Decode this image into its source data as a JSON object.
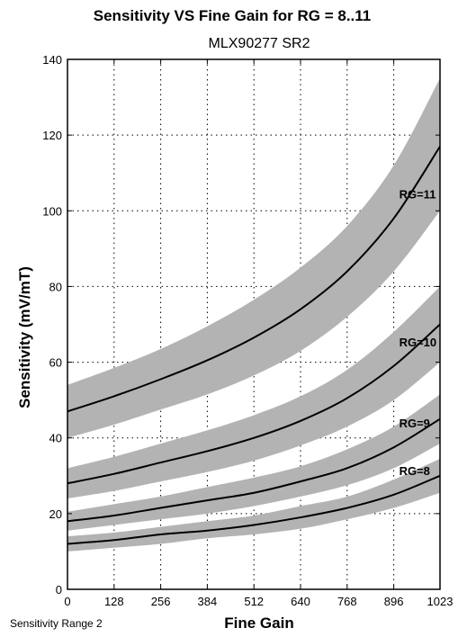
{
  "chart_data": {
    "type": "line",
    "title": "Sensitivity VS Fine Gain for RG = 8..11",
    "subtitle": "MLX90277 SR2",
    "xlabel": "Fine Gain",
    "ylabel": "Sensitivity (mV/mT)",
    "footnote": "Sensitivity Range 2",
    "xlim": [
      0,
      1023
    ],
    "ylim": [
      0,
      140
    ],
    "xticks": [
      0,
      128,
      256,
      384,
      512,
      640,
      768,
      896,
      1023
    ],
    "yticks": [
      0,
      20,
      40,
      60,
      80,
      100,
      120,
      140
    ],
    "grid": true,
    "band_color": "#b3b3b3",
    "line_color": "#000000",
    "x": [
      0,
      128,
      256,
      384,
      512,
      640,
      768,
      896,
      1023
    ],
    "series": [
      {
        "name": "RG=11",
        "values": [
          47,
          51,
          55.5,
          60.5,
          66.5,
          74,
          84,
          98,
          117
        ],
        "band_lower": [
          40,
          43.5,
          47.5,
          51.5,
          56.5,
          63,
          72,
          84,
          100
        ],
        "band_upper": [
          54,
          58.5,
          63.5,
          69.5,
          76.5,
          85,
          96,
          112,
          135
        ]
      },
      {
        "name": "RG=10",
        "values": [
          28,
          30.5,
          33.5,
          36.5,
          40,
          44.5,
          50.5,
          59,
          70
        ],
        "band_lower": [
          24,
          26,
          28.5,
          31,
          34,
          38,
          43,
          50,
          60
        ],
        "band_upper": [
          32,
          35,
          38.5,
          42,
          46,
          51,
          58,
          68,
          80
        ]
      },
      {
        "name": "RG=9",
        "values": [
          18,
          19.5,
          21.5,
          23.5,
          25.5,
          28.5,
          32,
          37.5,
          45
        ],
        "band_lower": [
          15.5,
          17,
          18.5,
          20,
          22,
          24.5,
          27.5,
          32,
          38.5
        ],
        "band_upper": [
          20.5,
          22.5,
          24.5,
          27,
          29.5,
          32.5,
          37,
          43,
          51.5
        ]
      },
      {
        "name": "RG=8",
        "values": [
          12,
          13,
          14.5,
          15.5,
          17,
          19,
          21.5,
          25,
          30
        ],
        "band_lower": [
          10,
          11,
          12,
          13.5,
          14.5,
          16,
          18.5,
          21.5,
          25.5
        ],
        "band_upper": [
          14,
          15,
          16.5,
          18,
          19.5,
          22,
          24.5,
          29,
          34.5
        ]
      }
    ]
  }
}
